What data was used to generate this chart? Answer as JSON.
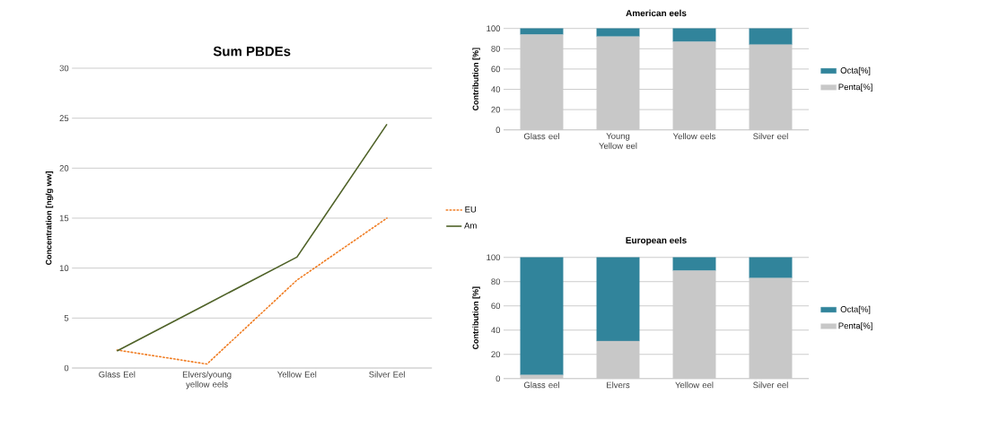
{
  "chart_data": [
    {
      "type": "line",
      "title": "Sum PBDEs",
      "ylabel": "Concentration [ng/g ww]",
      "categories": [
        "Glass Eel",
        "Elvers/young yellow eels",
        "Yellow Eel",
        "Silver Eel"
      ],
      "series": [
        {
          "name": "EU",
          "color": "#f07d23",
          "line_style": "dotted",
          "values": [
            1.8,
            0.4,
            8.8,
            15.0
          ]
        },
        {
          "name": "Am",
          "color": "#4f6228",
          "line_style": "solid",
          "values": [
            1.7,
            6.4,
            11.1,
            24.4
          ]
        }
      ],
      "ylim": [
        0,
        30
      ],
      "yticks": [
        0,
        5,
        10,
        15,
        20,
        25,
        30
      ],
      "grid": "y",
      "legend": "right",
      "marker": "none"
    },
    {
      "type": "bar",
      "stacked": true,
      "title": "American eels",
      "ylabel": "Contribution  [%]",
      "categories": [
        "Glass eel",
        "Young Yellow eel",
        "Yellow eels",
        "Silver eel"
      ],
      "series": [
        {
          "name": "Penta[%]",
          "color": "#c8c8c8",
          "values": [
            94,
            92,
            87,
            84
          ]
        },
        {
          "name": "Octa[%]",
          "color": "#31849b",
          "values": [
            6,
            8,
            13,
            16
          ]
        }
      ],
      "ylim": [
        0,
        100
      ],
      "yticks": [
        0,
        20,
        40,
        60,
        80,
        100
      ],
      "grid": "y",
      "legend": "right"
    },
    {
      "type": "bar",
      "stacked": true,
      "title": "European eels",
      "ylabel": "Contribution  [%]",
      "categories": [
        "Glass eel",
        "Elvers",
        "Yellow eel",
        "Silver eel"
      ],
      "series": [
        {
          "name": "Penta[%]",
          "color": "#c8c8c8",
          "values": [
            3,
            31,
            89,
            83
          ]
        },
        {
          "name": "Octa[%]",
          "color": "#31849b",
          "values": [
            97,
            69,
            11,
            17
          ]
        }
      ],
      "ylim": [
        0,
        100
      ],
      "yticks": [
        0,
        20,
        40,
        60,
        80,
        100
      ],
      "grid": "y",
      "legend": "right"
    }
  ]
}
